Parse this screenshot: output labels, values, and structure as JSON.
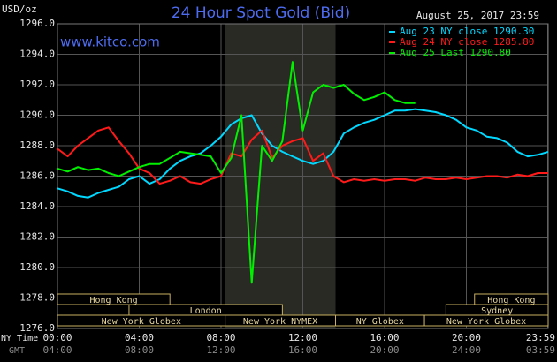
{
  "chart_data": {
    "type": "line",
    "title": "24 Hour Spot Gold (Bid)",
    "subtitle": "www.kitco.com",
    "y_label": "USD/oz",
    "timestamp": "August 25, 2017 23:59",
    "x_row_labels": [
      "NY Time",
      "GMT"
    ],
    "x": [
      0,
      0.5,
      1,
      1.5,
      2,
      2.5,
      3,
      3.5,
      4,
      4.5,
      5,
      5.5,
      6,
      6.5,
      7,
      7.5,
      8,
      8.5,
      9,
      9.5,
      10,
      10.5,
      11,
      11.5,
      12,
      12.5,
      13,
      13.5,
      14,
      14.5,
      15,
      15.5,
      16,
      16.5,
      17,
      17.5,
      18,
      18.5,
      19,
      19.5,
      20,
      20.5,
      21,
      21.5,
      22,
      22.5,
      23,
      23.5,
      24
    ],
    "series": [
      {
        "name": "Aug 23 NY close 1290.30",
        "color": "#00d8ff",
        "values": [
          1285.2,
          1285.0,
          1284.7,
          1284.6,
          1284.9,
          1285.1,
          1285.3,
          1285.8,
          1286.0,
          1285.5,
          1285.8,
          1286.5,
          1287.0,
          1287.3,
          1287.5,
          1288.0,
          1288.6,
          1289.4,
          1289.8,
          1290.0,
          1288.8,
          1288.0,
          1287.6,
          1287.3,
          1287.0,
          1286.8,
          1287.0,
          1287.6,
          1288.8,
          1289.2,
          1289.5,
          1289.7,
          1290.0,
          1290.3,
          1290.3,
          1290.4,
          1290.3,
          1290.2,
          1290.0,
          1289.7,
          1289.2,
          1289.0,
          1288.6,
          1288.5,
          1288.2,
          1287.6,
          1287.3,
          1287.4,
          1287.6
        ]
      },
      {
        "name": "Aug 24 NY close 1285.80",
        "color": "#ff1a1a",
        "values": [
          1287.8,
          1287.3,
          1288.0,
          1288.5,
          1289.0,
          1289.2,
          1288.3,
          1287.5,
          1286.5,
          1286.2,
          1285.5,
          1285.7,
          1286.0,
          1285.6,
          1285.5,
          1285.8,
          1286.0,
          1287.5,
          1287.3,
          1288.4,
          1289.0,
          1287.2,
          1288.0,
          1288.3,
          1288.5,
          1287.0,
          1287.5,
          1286.0,
          1285.6,
          1285.8,
          1285.7,
          1285.8,
          1285.7,
          1285.8,
          1285.8,
          1285.7,
          1285.9,
          1285.8,
          1285.8,
          1285.9,
          1285.8,
          1285.9,
          1286.0,
          1286.0,
          1285.9,
          1286.1,
          1286.0,
          1286.2,
          1286.2
        ]
      },
      {
        "name": "Aug 25 Last 1290.80",
        "color": "#00f000",
        "values": [
          1286.5,
          1286.3,
          1286.6,
          1286.4,
          1286.5,
          1286.2,
          1286.0,
          1286.3,
          1286.6,
          1286.8,
          1286.8,
          1287.2,
          1287.6,
          1287.5,
          1287.4,
          1287.3,
          1286.2,
          1287.2,
          1290.0,
          1279.0,
          1288.0,
          1287.0,
          1288.3,
          1293.5,
          1289.0,
          1291.5,
          1292.0,
          1291.8,
          1292.0,
          1291.4,
          1291.0,
          1291.2,
          1291.5,
          1291.0,
          1290.8,
          1290.8,
          null,
          null,
          null,
          null,
          null,
          null,
          null,
          null,
          null,
          null,
          null,
          null,
          null
        ]
      }
    ],
    "xlim": [
      0,
      24
    ],
    "xticks": [
      {
        "value": 0,
        "label": "00:00"
      },
      {
        "value": 4,
        "label": "04:00"
      },
      {
        "value": 8,
        "label": "08:00"
      },
      {
        "value": 12,
        "label": "12:00"
      },
      {
        "value": 16,
        "label": "16:00"
      },
      {
        "value": 20,
        "label": "20:00"
      },
      {
        "value": 23.98,
        "label": "23:59"
      }
    ],
    "x_gmt_labels": [
      "04:00",
      "08:00",
      "12:00",
      "16:00",
      "20:00",
      "24:00",
      "03:59"
    ],
    "ylim": [
      1276,
      1296
    ],
    "yticks": [
      {
        "value": 1276,
        "label": "1276.0"
      },
      {
        "value": 1278,
        "label": "1278.0"
      },
      {
        "value": 1280,
        "label": "1280.0"
      },
      {
        "value": 1282,
        "label": "1282.0"
      },
      {
        "value": 1284,
        "label": "1284.0"
      },
      {
        "value": 1286,
        "label": "1286.0"
      },
      {
        "value": 1288,
        "label": "1288.0"
      },
      {
        "value": 1290,
        "label": "1290.0"
      },
      {
        "value": 1292,
        "label": "1292.0"
      },
      {
        "value": 1294,
        "label": "1294.0"
      },
      {
        "value": 1296,
        "label": "1296.0"
      }
    ],
    "grid": true,
    "highlight_x": [
      8.2,
      13.6
    ],
    "session_rows": [
      [
        {
          "label": "Hong Kong",
          "start": 0,
          "end": 5.5
        },
        {
          "label": "Hong Kong",
          "start": 20.4,
          "end": 24
        }
      ],
      [
        {
          "label": "London",
          "start": 3.5,
          "end": 11.0
        },
        {
          "label": "Sydney",
          "start": 19.0,
          "end": 24
        }
      ],
      [
        {
          "label": "New York Globex",
          "start": 0,
          "end": 8.2
        },
        {
          "label": "New York NYMEX",
          "start": 8.2,
          "end": 13.6
        },
        {
          "label": "NY Globex",
          "start": 13.6,
          "end": 17.95
        },
        {
          "label": "New York Globex",
          "start": 17.95,
          "end": 24
        }
      ]
    ]
  }
}
